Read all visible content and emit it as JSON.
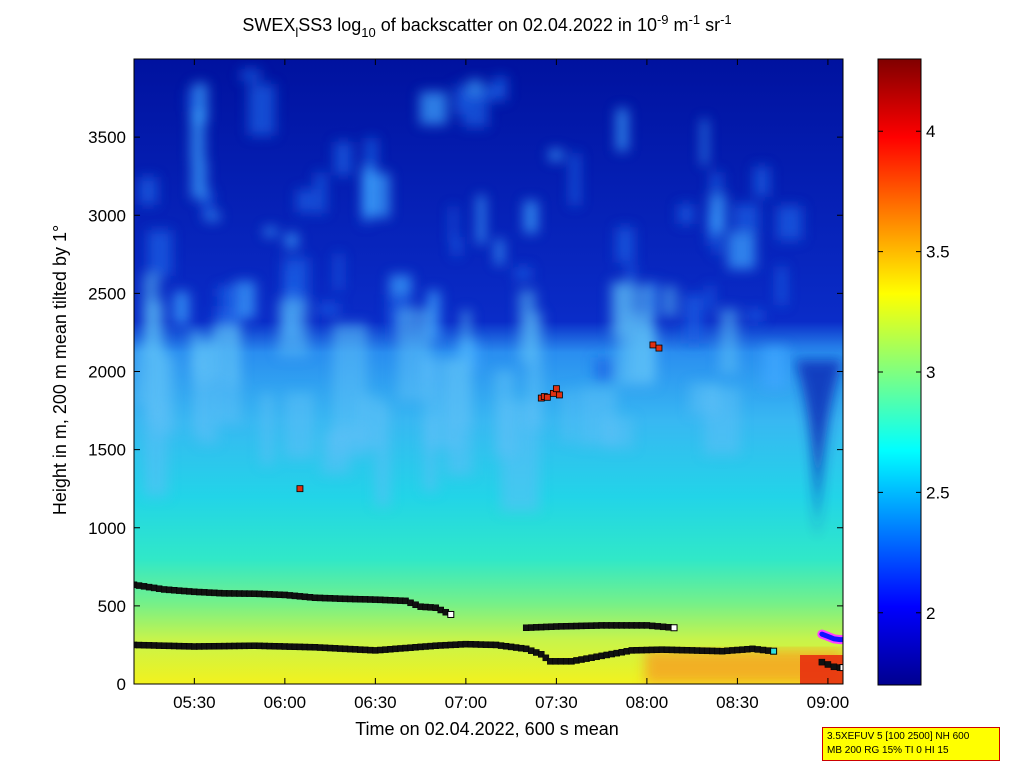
{
  "chart_data": {
    "type": "heatmap",
    "title": {
      "p1": "SWEX",
      "p1_sub": "l",
      "p2": "SS3 log",
      "p2_sub": "10",
      "p3": " of backscatter on 02.04.2022 in 10",
      "exp1": "-9",
      "p4": " m",
      "exp2": "-1",
      "p5": " sr",
      "exp3": "-1"
    },
    "xlabel": "Time on 02.04.2022, 600 s mean",
    "ylabel": "Height in m, 200 m mean tilted by 1°",
    "x_ticks": [
      "05:30",
      "06:00",
      "06:30",
      "07:00",
      "07:30",
      "08:00",
      "08:30",
      "09:00"
    ],
    "x_range": [
      "05:10",
      "09:05"
    ],
    "y_ticks": [
      0,
      500,
      1000,
      1500,
      2000,
      2500,
      3000,
      3500
    ],
    "ylim": [
      0,
      4000
    ],
    "colorbar": {
      "ticks": [
        "2",
        "2.5",
        "3",
        "3.5",
        "4"
      ],
      "tick_values": [
        2,
        2.5,
        3,
        3.5,
        4
      ],
      "range": [
        1.7,
        4.3
      ],
      "colormap": "jet"
    },
    "field": {
      "surface_value": 3.55,
      "cloud_top_height_m": 2150,
      "background_value": 1.75
    },
    "layer_series": [
      {
        "times": [
          "05:10",
          "05:20",
          "05:30",
          "05:40",
          "05:50",
          "06:00",
          "06:10",
          "06:20",
          "06:30",
          "06:40",
          "06:45",
          "06:50",
          "06:55"
        ],
        "heights": [
          635,
          605,
          590,
          580,
          578,
          570,
          552,
          545,
          540,
          532,
          495,
          488,
          445
        ]
      },
      {
        "times": [
          "05:10",
          "05:30",
          "05:50",
          "06:10",
          "06:30",
          "06:50",
          "07:00",
          "07:10",
          "07:20",
          "07:25",
          "07:28",
          "07:35",
          "07:45",
          "07:55",
          "08:05",
          "08:15",
          "08:25",
          "08:35",
          "08:42"
        ],
        "heights": [
          250,
          240,
          245,
          235,
          215,
          245,
          255,
          250,
          225,
          190,
          145,
          145,
          180,
          215,
          220,
          215,
          210,
          225,
          210
        ]
      },
      {
        "times": [
          "07:20",
          "07:30",
          "07:45",
          "08:00",
          "08:09"
        ],
        "heights": [
          360,
          368,
          375,
          375,
          360
        ]
      },
      {
        "times": [
          "08:58",
          "09:00",
          "09:02",
          "09:04",
          "09:05"
        ],
        "heights": [
          140,
          125,
          110,
          105,
          105
        ]
      }
    ],
    "cloud_points": [
      {
        "time": "06:05",
        "height": 1250
      },
      {
        "time": "07:25",
        "height": 1830
      },
      {
        "time": "07:26",
        "height": 1840
      },
      {
        "time": "07:27",
        "height": 1835
      },
      {
        "time": "07:29",
        "height": 1860
      },
      {
        "time": "07:30",
        "height": 1890
      },
      {
        "time": "07:31",
        "height": 1850
      },
      {
        "time": "08:02",
        "height": 2170
      },
      {
        "time": "08:04",
        "height": 2150
      }
    ]
  },
  "info_box": {
    "line1": "3.5XEFUV 5 [100 2500] NH 600",
    "line2": "MB 200 RG 15% TI 0 HI 15"
  }
}
